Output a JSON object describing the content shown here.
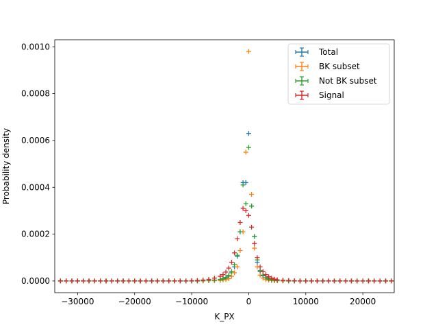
{
  "chart_data": {
    "type": "scatter",
    "title": "",
    "xlabel": "K_PX",
    "ylabel": "Probability density",
    "xlim": [
      -34000,
      25500
    ],
    "ylim": [
      -5e-05,
      0.00103
    ],
    "xticks": [
      -30000,
      -20000,
      -10000,
      0,
      10000,
      20000
    ],
    "xtick_labels": [
      "−30000",
      "−20000",
      "−10000",
      "0",
      "10000",
      "20000"
    ],
    "yticks": [
      0,
      0.0002,
      0.0004,
      0.0006,
      0.0008,
      0.001
    ],
    "ytick_labels": [
      "0.0000",
      "0.0002",
      "0.0004",
      "0.0006",
      "0.0008",
      "0.0010"
    ],
    "grid": false,
    "legend_position": "top-right",
    "error_bars": true,
    "series": [
      {
        "name": "Total",
        "color": "#1f77b4",
        "x": [
          -33000,
          -32000,
          -31000,
          -30000,
          -29000,
          -28000,
          -27000,
          -26000,
          -25000,
          -24000,
          -23000,
          -22000,
          -21000,
          -20000,
          -19000,
          -18000,
          -17000,
          -16000,
          -15000,
          -14000,
          -13000,
          -12000,
          -11000,
          -10000,
          -9000,
          -8000,
          -7000,
          -6000,
          -5000,
          -4500,
          -4000,
          -3500,
          -3000,
          -2500,
          -2000,
          -1500,
          -1000,
          -500,
          0,
          500,
          1000,
          1500,
          2000,
          2500,
          3000,
          3500,
          4000,
          4500,
          5000,
          6000,
          7000,
          8000,
          9000,
          10000,
          11000,
          12000,
          13000,
          14000,
          15000,
          16000,
          17000,
          18000,
          19000,
          20000,
          21000,
          22000,
          23000,
          24000,
          25000
        ],
        "y": [
          0,
          0,
          0,
          0,
          0,
          0,
          0,
          0,
          0,
          0,
          0,
          0,
          0,
          0,
          0,
          0,
          0,
          0,
          0,
          0,
          0,
          0,
          0,
          0,
          0,
          1e-06,
          2e-06,
          3e-06,
          6e-06,
          8e-06,
          1.2e-05,
          2e-05,
          3.5e-05,
          6e-05,
          0.000105,
          0.00021,
          0.00042,
          0.00042,
          0.00063,
          0.00032,
          0.00019,
          8e-05,
          4e-05,
          2.2e-05,
          1.2e-05,
          7e-06,
          4e-06,
          3e-06,
          2e-06,
          1e-06,
          0,
          0,
          0,
          0,
          0,
          0,
          0,
          0,
          0,
          0,
          0,
          0,
          0,
          0,
          0,
          0,
          0,
          0,
          0
        ]
      },
      {
        "name": "BK subset",
        "color": "#ff7f0e",
        "x": [
          -33000,
          -32000,
          -31000,
          -30000,
          -29000,
          -28000,
          -27000,
          -26000,
          -25000,
          -24000,
          -23000,
          -22000,
          -21000,
          -20000,
          -19000,
          -18000,
          -17000,
          -16000,
          -15000,
          -14000,
          -13000,
          -12000,
          -11000,
          -10000,
          -9000,
          -8000,
          -7000,
          -6000,
          -5000,
          -4500,
          -4000,
          -3500,
          -3000,
          -2500,
          -2000,
          -1500,
          -1000,
          -500,
          0,
          500,
          1000,
          1500,
          2000,
          2500,
          3000,
          3500,
          4000,
          4500,
          5000,
          6000,
          7000,
          8000,
          9000,
          10000,
          11000,
          12000,
          13000,
          14000,
          15000,
          16000,
          17000,
          18000,
          19000,
          20000,
          21000,
          22000,
          23000,
          24000,
          25000
        ],
        "y": [
          0,
          0,
          0,
          0,
          0,
          0,
          0,
          0,
          0,
          0,
          0,
          0,
          0,
          0,
          0,
          0,
          0,
          0,
          0,
          0,
          0,
          0,
          0,
          0,
          0,
          0,
          1e-06,
          1e-06,
          2e-06,
          4e-06,
          6e-06,
          1e-05,
          2e-05,
          3.5e-05,
          6e-05,
          0.00013,
          0.00021,
          0.00055,
          0.00098,
          0.00037,
          0.00014,
          6e-05,
          2.5e-05,
          1.2e-05,
          6e-06,
          3e-06,
          2e-06,
          1e-06,
          1e-06,
          0,
          0,
          0,
          0,
          0,
          0,
          0,
          0,
          0,
          0,
          0,
          0,
          0,
          0,
          0,
          0,
          0,
          0,
          0,
          0
        ]
      },
      {
        "name": "Not BK subset",
        "color": "#2ca02c",
        "x": [
          -33000,
          -32000,
          -31000,
          -30000,
          -29000,
          -28000,
          -27000,
          -26000,
          -25000,
          -24000,
          -23000,
          -22000,
          -21000,
          -20000,
          -19000,
          -18000,
          -17000,
          -16000,
          -15000,
          -14000,
          -13000,
          -12000,
          -11000,
          -10000,
          -9000,
          -8000,
          -7000,
          -6000,
          -5000,
          -4500,
          -4000,
          -3500,
          -3000,
          -2500,
          -2000,
          -1500,
          -1000,
          -500,
          0,
          500,
          1000,
          1500,
          2000,
          2500,
          3000,
          3500,
          4000,
          4500,
          5000,
          6000,
          7000,
          8000,
          9000,
          10000,
          11000,
          12000,
          13000,
          14000,
          15000,
          16000,
          17000,
          18000,
          19000,
          20000,
          21000,
          22000,
          23000,
          24000,
          25000
        ],
        "y": [
          0,
          0,
          0,
          0,
          0,
          0,
          0,
          0,
          0,
          0,
          0,
          0,
          0,
          0,
          0,
          0,
          0,
          0,
          0,
          0,
          0,
          0,
          0,
          0,
          0,
          1e-06,
          2e-06,
          4e-06,
          7e-06,
          1e-05,
          1.5e-05,
          2.4e-05,
          4e-05,
          7e-05,
          0.00011,
          0.00021,
          0.00041,
          0.00033,
          0.00057,
          0.00032,
          0.00019,
          9e-05,
          4.5e-05,
          2.5e-05,
          1.4e-05,
          8e-06,
          5e-06,
          3e-06,
          2e-06,
          1e-06,
          0,
          0,
          0,
          0,
          0,
          0,
          0,
          0,
          0,
          0,
          0,
          0,
          0,
          0,
          0,
          0,
          0,
          0,
          0
        ]
      },
      {
        "name": "Signal",
        "color": "#d62728",
        "x": [
          -33000,
          -32000,
          -31000,
          -30000,
          -29000,
          -28000,
          -27000,
          -26000,
          -25000,
          -24000,
          -23000,
          -22000,
          -21000,
          -20000,
          -19000,
          -18000,
          -17000,
          -16000,
          -15000,
          -14000,
          -13000,
          -12000,
          -11000,
          -10000,
          -9000,
          -8000,
          -7000,
          -6000,
          -5000,
          -4500,
          -4000,
          -3500,
          -3000,
          -2500,
          -2000,
          -1500,
          -1000,
          -500,
          0,
          500,
          1000,
          1500,
          2000,
          2500,
          3000,
          3500,
          4000,
          4500,
          5000,
          6000,
          7000,
          8000,
          9000,
          10000,
          11000,
          12000,
          13000,
          14000,
          15000,
          16000,
          17000,
          18000,
          19000,
          20000,
          21000,
          22000,
          23000,
          24000,
          25000
        ],
        "y": [
          0,
          0,
          0,
          0,
          0,
          0,
          0,
          0,
          0,
          0,
          0,
          0,
          0,
          0,
          0,
          0,
          0,
          0,
          0,
          0,
          0,
          0,
          0,
          1e-06,
          2e-06,
          4e-06,
          7e-06,
          1.2e-05,
          2e-05,
          2.7e-05,
          3.8e-05,
          5.5e-05,
          8e-05,
          0.00012,
          0.00018,
          0.00025,
          0.00031,
          0.0003,
          0.00028,
          0.00023,
          0.00016,
          0.0001,
          6e-05,
          4e-05,
          2.7e-05,
          1.8e-05,
          1.2e-05,
          8e-06,
          5e-06,
          3e-06,
          2e-06,
          1e-06,
          0,
          0,
          0,
          0,
          0,
          0,
          0,
          0,
          0,
          0,
          0,
          0,
          0,
          0,
          0,
          0,
          0
        ]
      }
    ]
  }
}
